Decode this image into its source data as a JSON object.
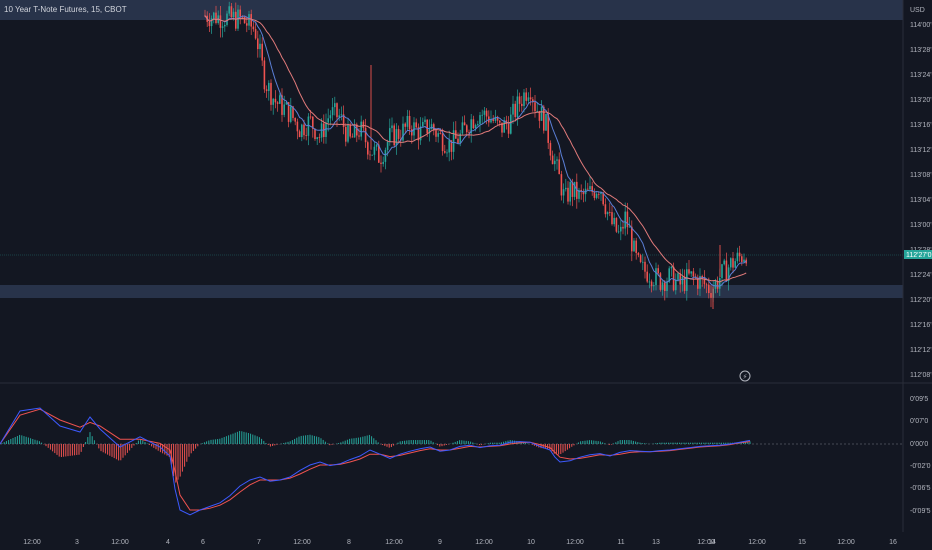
{
  "header": {
    "title": "10 Year T-Note Futures, 15, CBOT",
    "currency": "USD"
  },
  "colors": {
    "background": "#131722",
    "up": "#26a69a",
    "down": "#ef5350",
    "zone": "#3a4a6b",
    "ma_fast": "#5b7fd6",
    "ma_slow": "#e07a7a",
    "macd": "#3d5afe",
    "signal": "#ef5350",
    "axis_text": "#b2b5be",
    "current_price": "#26a69a"
  },
  "chart_data": [
    {
      "type": "candlestick",
      "name": "price",
      "y_ticks": [
        "114'00'0",
        "113'28'0",
        "113'24'0",
        "113'20'0",
        "113'16'0",
        "113'12'0",
        "113'08'0",
        "113'04'0",
        "113'00'0",
        "112'28'0",
        "112'24'0",
        "112'20'0",
        "112'16'0",
        "112'12'0",
        "112'08'0"
      ],
      "x_ticks": [
        "12:00",
        "3",
        "12:00",
        "4",
        "6",
        "7",
        "12:00",
        "8",
        "12:00",
        "9",
        "12:00",
        "10",
        "12:00",
        "11",
        "13",
        "12:00",
        "14",
        "12:00",
        "15",
        "12:00",
        "16"
      ],
      "current_price_label": "112'27'0",
      "zones": [
        {
          "from_tick": "114'00'0",
          "to_tick": "114'02'0",
          "label": ""
        },
        {
          "from_tick": "112'22'0",
          "to_tick": "112'20'0",
          "label": ""
        }
      ],
      "path": [
        [
          0.0,
          113.94
        ],
        [
          0.05,
          114.02
        ],
        [
          0.12,
          113.98
        ],
        [
          0.2,
          114.05
        ],
        [
          0.24,
          114.03
        ],
        [
          0.255,
          113.98
        ],
        [
          0.265,
          113.72
        ],
        [
          0.275,
          113.62
        ],
        [
          0.29,
          113.56
        ],
        [
          0.3,
          113.48
        ],
        [
          0.31,
          113.52
        ],
        [
          0.32,
          113.44
        ],
        [
          0.33,
          113.56
        ],
        [
          0.34,
          113.54
        ],
        [
          0.35,
          113.42
        ],
        [
          0.36,
          113.48
        ],
        [
          0.37,
          113.38
        ],
        [
          0.38,
          113.34
        ],
        [
          0.39,
          113.44
        ],
        [
          0.4,
          113.46
        ],
        [
          0.41,
          113.5
        ],
        [
          0.42,
          113.46
        ],
        [
          0.43,
          113.5
        ],
        [
          0.44,
          113.44
        ],
        [
          0.45,
          113.4
        ],
        [
          0.46,
          113.44
        ],
        [
          0.47,
          113.52
        ],
        [
          0.48,
          113.56
        ],
        [
          0.49,
          113.54
        ],
        [
          0.5,
          113.48
        ],
        [
          0.51,
          113.52
        ],
        [
          0.52,
          113.62
        ],
        [
          0.525,
          113.66
        ],
        [
          0.53,
          113.7
        ],
        [
          0.535,
          113.6
        ],
        [
          0.54,
          113.56
        ],
        [
          0.545,
          113.52
        ],
        [
          0.55,
          113.4
        ],
        [
          0.56,
          113.22
        ],
        [
          0.565,
          113.12
        ],
        [
          0.57,
          113.18
        ],
        [
          0.58,
          113.14
        ],
        [
          0.59,
          113.16
        ],
        [
          0.6,
          113.2
        ],
        [
          0.61,
          113.02
        ],
        [
          0.62,
          112.94
        ],
        [
          0.625,
          113.04
        ],
        [
          0.63,
          112.96
        ],
        [
          0.635,
          112.84
        ],
        [
          0.64,
          112.78
        ],
        [
          0.65,
          112.76
        ],
        [
          0.66,
          112.72
        ],
        [
          0.67,
          112.74
        ],
        [
          0.68,
          112.7
        ],
        [
          0.69,
          112.74
        ],
        [
          0.7,
          112.72
        ],
        [
          0.71,
          112.68
        ],
        [
          0.715,
          112.7
        ],
        [
          0.72,
          112.74
        ],
        [
          0.73,
          112.8
        ],
        [
          0.74,
          112.84
        ],
        [
          0.75,
          112.88
        ]
      ],
      "highlights": [
        [
          0.371,
          113.8
        ],
        [
          0.72,
          112.9
        ],
        [
          0.713,
          112.58
        ]
      ]
    },
    {
      "type": "macd",
      "name": "oscillator",
      "y_ticks": [
        "0'09'5",
        "0'07'0",
        "0'00'0",
        "-0'02'0",
        "-0'06'5",
        "-0'09'5"
      ],
      "macd": [
        [
          0.0,
          0.0
        ],
        [
          0.02,
          0.055
        ],
        [
          0.04,
          0.06
        ],
        [
          0.06,
          0.03
        ],
        [
          0.08,
          0.02
        ],
        [
          0.09,
          0.045
        ],
        [
          0.1,
          0.025
        ],
        [
          0.12,
          -0.005
        ],
        [
          0.14,
          0.012
        ],
        [
          0.16,
          -0.005
        ],
        [
          0.17,
          -0.02
        ],
        [
          0.175,
          -0.075
        ],
        [
          0.18,
          -0.11
        ],
        [
          0.19,
          -0.118
        ],
        [
          0.2,
          -0.11
        ],
        [
          0.21,
          -0.104
        ],
        [
          0.22,
          -0.098
        ],
        [
          0.23,
          -0.086
        ],
        [
          0.24,
          -0.07
        ],
        [
          0.25,
          -0.06
        ],
        [
          0.26,
          -0.055
        ],
        [
          0.27,
          -0.062
        ],
        [
          0.28,
          -0.06
        ],
        [
          0.29,
          -0.055
        ],
        [
          0.3,
          -0.044
        ],
        [
          0.31,
          -0.035
        ],
        [
          0.32,
          -0.03
        ],
        [
          0.33,
          -0.036
        ],
        [
          0.34,
          -0.033
        ],
        [
          0.35,
          -0.026
        ],
        [
          0.36,
          -0.02
        ],
        [
          0.37,
          -0.01
        ],
        [
          0.38,
          -0.017
        ],
        [
          0.39,
          -0.024
        ],
        [
          0.4,
          -0.017
        ],
        [
          0.41,
          -0.012
        ],
        [
          0.42,
          -0.008
        ],
        [
          0.43,
          -0.005
        ],
        [
          0.44,
          -0.012
        ],
        [
          0.45,
          -0.01
        ],
        [
          0.46,
          -0.004
        ],
        [
          0.47,
          -0.002
        ],
        [
          0.48,
          -0.006
        ],
        [
          0.49,
          -0.003
        ],
        [
          0.5,
          -0.002
        ],
        [
          0.51,
          0.003
        ],
        [
          0.52,
          0.004
        ],
        [
          0.53,
          0.003
        ],
        [
          0.54,
          -0.004
        ],
        [
          0.55,
          -0.01
        ],
        [
          0.555,
          -0.022
        ],
        [
          0.56,
          -0.03
        ],
        [
          0.57,
          -0.028
        ],
        [
          0.58,
          -0.022
        ],
        [
          0.59,
          -0.018
        ],
        [
          0.6,
          -0.016
        ],
        [
          0.61,
          -0.02
        ],
        [
          0.62,
          -0.014
        ],
        [
          0.63,
          -0.011
        ],
        [
          0.64,
          -0.012
        ],
        [
          0.65,
          -0.013
        ],
        [
          0.66,
          -0.011
        ],
        [
          0.67,
          -0.01
        ],
        [
          0.68,
          -0.008
        ],
        [
          0.69,
          -0.006
        ],
        [
          0.7,
          -0.004
        ],
        [
          0.71,
          -0.003
        ],
        [
          0.72,
          -0.002
        ],
        [
          0.73,
          0.0
        ],
        [
          0.74,
          0.003
        ],
        [
          0.75,
          0.006
        ]
      ],
      "signal": [
        [
          0.0,
          0.0
        ],
        [
          0.02,
          0.048
        ],
        [
          0.04,
          0.058
        ],
        [
          0.06,
          0.04
        ],
        [
          0.08,
          0.028
        ],
        [
          0.09,
          0.036
        ],
        [
          0.1,
          0.03
        ],
        [
          0.12,
          0.008
        ],
        [
          0.14,
          0.008
        ],
        [
          0.16,
          0.001
        ],
        [
          0.17,
          -0.01
        ],
        [
          0.175,
          -0.045
        ],
        [
          0.18,
          -0.085
        ],
        [
          0.19,
          -0.11
        ],
        [
          0.2,
          -0.11
        ],
        [
          0.21,
          -0.107
        ],
        [
          0.22,
          -0.102
        ],
        [
          0.23,
          -0.093
        ],
        [
          0.24,
          -0.08
        ],
        [
          0.25,
          -0.068
        ],
        [
          0.26,
          -0.06
        ],
        [
          0.27,
          -0.06
        ],
        [
          0.28,
          -0.06
        ],
        [
          0.29,
          -0.057
        ],
        [
          0.3,
          -0.05
        ],
        [
          0.31,
          -0.042
        ],
        [
          0.32,
          -0.035
        ],
        [
          0.33,
          -0.035
        ],
        [
          0.34,
          -0.034
        ],
        [
          0.35,
          -0.03
        ],
        [
          0.36,
          -0.025
        ],
        [
          0.37,
          -0.017
        ],
        [
          0.38,
          -0.017
        ],
        [
          0.39,
          -0.021
        ],
        [
          0.4,
          -0.019
        ],
        [
          0.41,
          -0.015
        ],
        [
          0.42,
          -0.011
        ],
        [
          0.43,
          -0.008
        ],
        [
          0.44,
          -0.01
        ],
        [
          0.45,
          -0.01
        ],
        [
          0.46,
          -0.007
        ],
        [
          0.47,
          -0.004
        ],
        [
          0.48,
          -0.005
        ],
        [
          0.49,
          -0.004
        ],
        [
          0.5,
          -0.003
        ],
        [
          0.51,
          0.0
        ],
        [
          0.52,
          0.002
        ],
        [
          0.53,
          0.003
        ],
        [
          0.54,
          -0.001
        ],
        [
          0.55,
          -0.006
        ],
        [
          0.555,
          -0.014
        ],
        [
          0.56,
          -0.022
        ],
        [
          0.57,
          -0.025
        ],
        [
          0.58,
          -0.024
        ],
        [
          0.59,
          -0.021
        ],
        [
          0.6,
          -0.018
        ],
        [
          0.61,
          -0.019
        ],
        [
          0.62,
          -0.017
        ],
        [
          0.63,
          -0.014
        ],
        [
          0.64,
          -0.013
        ],
        [
          0.65,
          -0.013
        ],
        [
          0.66,
          -0.012
        ],
        [
          0.67,
          -0.011
        ],
        [
          0.68,
          -0.009
        ],
        [
          0.69,
          -0.007
        ],
        [
          0.7,
          -0.005
        ],
        [
          0.71,
          -0.004
        ],
        [
          0.72,
          -0.003
        ],
        [
          0.73,
          -0.001
        ],
        [
          0.74,
          0.002
        ],
        [
          0.75,
          0.004
        ]
      ]
    }
  ]
}
